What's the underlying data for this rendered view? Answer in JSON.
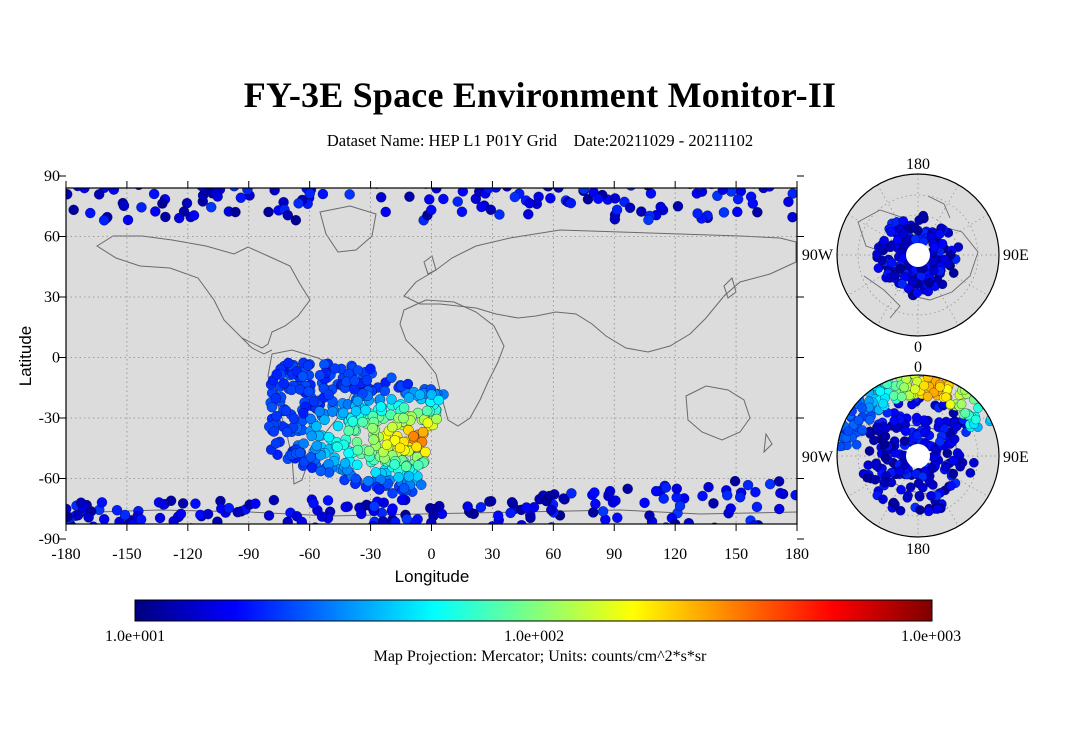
{
  "title": "FY-3E Space Environment Monitor-II",
  "subtitle": {
    "dataset_label": "Dataset Name: HEP L1 P01Y Grid",
    "date_label": "Date:20211029 - 20211102"
  },
  "map": {
    "projection": "Mercator",
    "xlabel": "Longitude",
    "ylabel": "Latitude",
    "xlim": [
      -180,
      180
    ],
    "ylim": [
      -90,
      90
    ],
    "xticks": [
      "-180",
      "-150",
      "-120",
      "-90",
      "-60",
      "-30",
      "0",
      "30",
      "60",
      "90",
      "120",
      "150",
      "180"
    ],
    "yticks": [
      "90",
      "60",
      "30",
      "0",
      "-30",
      "-60",
      "-90"
    ],
    "grid": "dotted",
    "land_color": "#dcdcdc"
  },
  "north_polar": {
    "top_label": "180",
    "left_label": "90W",
    "right_label": "90E",
    "bottom_label": "0"
  },
  "south_polar": {
    "top_label": "0",
    "left_label": "90W",
    "right_label": "90E",
    "bottom_label": "180"
  },
  "colorbar": {
    "scale": "log",
    "min_label": "1.0e+001",
    "mid_label": "1.0e+002",
    "max_label": "1.0e+003",
    "colors": [
      "#00007f",
      "#0000ff",
      "#0080ff",
      "#00ffff",
      "#80ff80",
      "#ffff00",
      "#ff8000",
      "#ff0000",
      "#7f0000"
    ],
    "caption": "Map Projection: Mercator; Units: counts/cm^2*s*sr"
  }
}
